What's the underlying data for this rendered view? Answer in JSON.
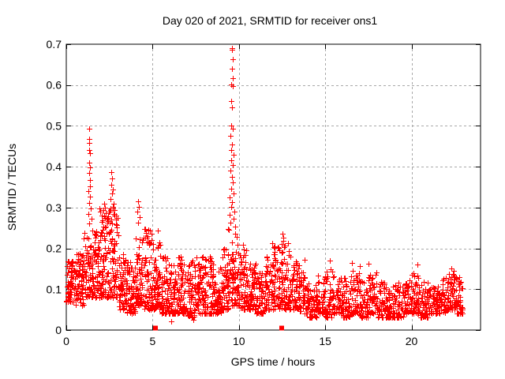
{
  "chart_data": {
    "type": "scatter",
    "title": "Day 020 of 2021, SRMTID for receiver ons1",
    "xlabel": "GPS time / hours",
    "ylabel": "SRMTID / TECUs",
    "xlim": [
      0,
      24
    ],
    "ylim": [
      0,
      0.7
    ],
    "xticks": [
      {
        "v": 0,
        "label": "0"
      },
      {
        "v": 5,
        "label": "5"
      },
      {
        "v": 10,
        "label": "10"
      },
      {
        "v": 15,
        "label": "15"
      },
      {
        "v": 20,
        "label": "20"
      }
    ],
    "yticks": [
      {
        "v": 0,
        "label": "0"
      },
      {
        "v": 0.1,
        "label": "0.1"
      },
      {
        "v": 0.2,
        "label": "0.2"
      },
      {
        "v": 0.3,
        "label": "0.3"
      },
      {
        "v": 0.4,
        "label": "0.4"
      },
      {
        "v": 0.5,
        "label": "0.5"
      },
      {
        "v": 0.6,
        "label": "0.6"
      },
      {
        "v": 0.7,
        "label": "0.7"
      }
    ],
    "grid": true,
    "legend": "none",
    "marker": {
      "shape": "plus",
      "size": 7
    },
    "colors": {
      "points": "#ff0000",
      "grid": "#a9a9a9",
      "axis": "#000000",
      "text": "#000000",
      "background": "#ffffff"
    },
    "data_extent_hours": [
      0,
      23
    ],
    "cloud_bins": [
      [
        0,
        0.5,
        70,
        0.07,
        0.17
      ],
      [
        0.5,
        1,
        70,
        0.06,
        0.19
      ],
      [
        1,
        1.5,
        70,
        0.08,
        0.24
      ],
      [
        1.5,
        2,
        70,
        0.08,
        0.25
      ],
      [
        2,
        2.5,
        72,
        0.08,
        0.29
      ],
      [
        2.5,
        3,
        72,
        0.08,
        0.3
      ],
      [
        3,
        3.5,
        68,
        0.05,
        0.19
      ],
      [
        3.5,
        4,
        66,
        0.04,
        0.17
      ],
      [
        4,
        4.5,
        68,
        0.06,
        0.24
      ],
      [
        4.5,
        5,
        66,
        0.05,
        0.25
      ],
      [
        5,
        5.5,
        64,
        0.05,
        0.21
      ],
      [
        5.5,
        6,
        62,
        0.04,
        0.18
      ],
      [
        6,
        6.5,
        60,
        0.04,
        0.16
      ],
      [
        6.5,
        7,
        60,
        0.04,
        0.18
      ],
      [
        7,
        7.5,
        60,
        0.03,
        0.17
      ],
      [
        7.5,
        8,
        60,
        0.04,
        0.19
      ],
      [
        8,
        8.5,
        60,
        0.04,
        0.18
      ],
      [
        8.5,
        9,
        60,
        0.04,
        0.16
      ],
      [
        9,
        9.5,
        62,
        0.05,
        0.2
      ],
      [
        9.5,
        10,
        62,
        0.06,
        0.22
      ],
      [
        10,
        10.5,
        62,
        0.05,
        0.21
      ],
      [
        10.5,
        11,
        60,
        0.05,
        0.17
      ],
      [
        11,
        11.5,
        60,
        0.04,
        0.15
      ],
      [
        11.5,
        12,
        62,
        0.05,
        0.18
      ],
      [
        12,
        12.5,
        62,
        0.05,
        0.21
      ],
      [
        12.5,
        13,
        62,
        0.05,
        0.22
      ],
      [
        13,
        13.5,
        55,
        0.05,
        0.17
      ],
      [
        13.5,
        14,
        50,
        0.04,
        0.16
      ],
      [
        14,
        14.5,
        48,
        0.03,
        0.12
      ],
      [
        14.5,
        15,
        48,
        0.04,
        0.14
      ],
      [
        15,
        15.5,
        48,
        0.03,
        0.15
      ],
      [
        15.5,
        16,
        48,
        0.04,
        0.14
      ],
      [
        16,
        16.5,
        48,
        0.03,
        0.13
      ],
      [
        16.5,
        17,
        48,
        0.04,
        0.16
      ],
      [
        17,
        17.5,
        48,
        0.03,
        0.12
      ],
      [
        17.5,
        18,
        48,
        0.04,
        0.15
      ],
      [
        18,
        18.5,
        48,
        0.03,
        0.12
      ],
      [
        18.5,
        19,
        48,
        0.03,
        0.11
      ],
      [
        19,
        19.5,
        48,
        0.03,
        0.12
      ],
      [
        19.5,
        20,
        48,
        0.04,
        0.13
      ],
      [
        20,
        20.5,
        48,
        0.04,
        0.15
      ],
      [
        20.5,
        21,
        48,
        0.03,
        0.12
      ],
      [
        21,
        21.5,
        48,
        0.04,
        0.12
      ],
      [
        21.5,
        22,
        48,
        0.04,
        0.13
      ],
      [
        22,
        22.5,
        50,
        0.05,
        0.14
      ],
      [
        22.5,
        23,
        48,
        0.04,
        0.13
      ]
    ],
    "spike_points": [
      [
        1.33,
        0.493
      ],
      [
        1.34,
        0.468
      ],
      [
        1.33,
        0.458
      ],
      [
        1.32,
        0.44
      ],
      [
        1.36,
        0.434
      ],
      [
        1.33,
        0.41
      ],
      [
        1.35,
        0.399
      ],
      [
        1.31,
        0.384
      ],
      [
        1.36,
        0.368
      ],
      [
        1.38,
        0.352
      ],
      [
        1.3,
        0.34
      ],
      [
        1.37,
        0.326
      ],
      [
        1.34,
        0.312
      ],
      [
        1.41,
        0.298
      ],
      [
        1.28,
        0.285
      ],
      [
        1.44,
        0.272
      ],
      [
        1.31,
        0.262
      ],
      [
        1.92,
        0.298
      ],
      [
        1.95,
        0.29
      ],
      [
        2.18,
        0.31
      ],
      [
        2.24,
        0.3
      ],
      [
        2.14,
        0.294
      ],
      [
        2.3,
        0.286
      ],
      [
        2.21,
        0.278
      ],
      [
        2.62,
        0.387
      ],
      [
        2.66,
        0.371
      ],
      [
        2.6,
        0.356
      ],
      [
        2.71,
        0.345
      ],
      [
        2.64,
        0.334
      ],
      [
        2.58,
        0.321
      ],
      [
        2.75,
        0.31
      ],
      [
        2.68,
        0.301
      ],
      [
        2.55,
        0.294
      ],
      [
        2.79,
        0.284
      ],
      [
        2.86,
        0.27
      ],
      [
        2.5,
        0.263
      ],
      [
        2.92,
        0.252
      ],
      [
        4.15,
        0.315
      ],
      [
        4.21,
        0.301
      ],
      [
        4.12,
        0.29
      ],
      [
        4.26,
        0.276
      ],
      [
        4.18,
        0.263
      ],
      [
        4.56,
        0.247
      ],
      [
        4.62,
        0.238
      ],
      [
        5.32,
        0.244
      ],
      [
        5.38,
        0.215
      ],
      [
        5.45,
        0.208
      ],
      [
        9.35,
        0.247
      ],
      [
        9.62,
        0.69
      ],
      [
        9.6,
        0.686
      ],
      [
        9.64,
        0.664
      ],
      [
        9.59,
        0.64
      ],
      [
        9.65,
        0.616
      ],
      [
        9.57,
        0.601
      ],
      [
        9.63,
        0.597
      ],
      [
        9.55,
        0.56
      ],
      [
        9.61,
        0.545
      ],
      [
        9.57,
        0.501
      ],
      [
        9.64,
        0.494
      ],
      [
        9.52,
        0.476
      ],
      [
        9.6,
        0.455
      ],
      [
        9.56,
        0.441
      ],
      [
        9.68,
        0.429
      ],
      [
        9.54,
        0.416
      ],
      [
        9.63,
        0.404
      ],
      [
        9.5,
        0.391
      ],
      [
        9.59,
        0.376
      ],
      [
        9.66,
        0.361
      ],
      [
        9.55,
        0.347
      ],
      [
        9.7,
        0.334
      ],
      [
        9.48,
        0.325
      ],
      [
        9.62,
        0.314
      ],
      [
        9.57,
        0.302
      ],
      [
        9.73,
        0.291
      ],
      [
        9.45,
        0.282
      ],
      [
        9.67,
        0.273
      ],
      [
        9.52,
        0.263
      ],
      [
        9.76,
        0.253
      ],
      [
        9.42,
        0.246
      ],
      [
        9.8,
        0.236
      ],
      [
        9.86,
        0.228
      ],
      [
        11.95,
        0.212
      ],
      [
        12.05,
        0.205
      ],
      [
        12.52,
        0.236
      ],
      [
        12.56,
        0.226
      ],
      [
        12.48,
        0.211
      ],
      [
        12.62,
        0.204
      ],
      [
        13.82,
        0.172
      ],
      [
        15.25,
        0.17
      ],
      [
        16.55,
        0.165
      ],
      [
        17.52,
        0.163
      ],
      [
        20.35,
        0.16
      ],
      [
        22.3,
        0.15
      ],
      [
        22.45,
        0.145
      ]
    ],
    "low_outliers": [
      [
        6.08,
        0.021
      ],
      [
        7.35,
        0.026
      ],
      [
        6.02,
        0.048
      ]
    ],
    "zero_markers": {
      "shape": "square",
      "x": [
        5.17,
        12.48
      ],
      "y": 0
    },
    "render_seed": 7
  }
}
